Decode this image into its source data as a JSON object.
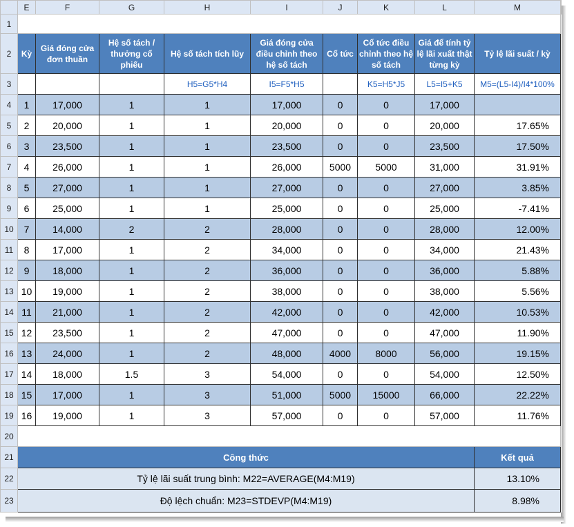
{
  "columns": [
    "E",
    "F",
    "G",
    "H",
    "I",
    "J",
    "K",
    "L",
    "M"
  ],
  "row_numbers": [
    "1",
    "2",
    "3",
    "4",
    "5",
    "6",
    "7",
    "8",
    "9",
    "10",
    "11",
    "12",
    "13",
    "14",
    "15",
    "16",
    "17",
    "18",
    "19",
    "20",
    "21",
    "22",
    "23"
  ],
  "headers": [
    "Kỳ",
    "Giá đóng cửa đơn thuần",
    "Hệ số tách / thưởng cổ phiếu",
    "Hệ số tách tích lũy",
    "Giá đóng cửa điều chỉnh theo hệ số tách",
    "Cổ tức",
    "Cổ tức điều chỉnh theo hệ số tách",
    "Giá để tính tỷ lệ lãi xuất thật từng kỳ",
    "Tỷ lệ lãi suất / kỳ"
  ],
  "formulas": [
    "",
    "",
    "",
    "H5=G5*H4",
    "I5=F5*H5",
    "",
    "K5=H5*J5",
    "L5=I5+K5",
    "M5=(L5-I4)/I4*100%"
  ],
  "rows": [
    [
      "1",
      "17,000",
      "1",
      "1",
      "17,000",
      "0",
      "0",
      "17,000",
      ""
    ],
    [
      "2",
      "20,000",
      "1",
      "1",
      "20,000",
      "0",
      "0",
      "20,000",
      "17.65%"
    ],
    [
      "3",
      "23,500",
      "1",
      "1",
      "23,500",
      "0",
      "0",
      "23,500",
      "17.50%"
    ],
    [
      "4",
      "26,000",
      "1",
      "1",
      "26,000",
      "5000",
      "5000",
      "31,000",
      "31.91%"
    ],
    [
      "5",
      "27,000",
      "1",
      "1",
      "27,000",
      "0",
      "0",
      "27,000",
      "3.85%"
    ],
    [
      "6",
      "25,000",
      "1",
      "1",
      "25,000",
      "0",
      "0",
      "25,000",
      "-7.41%"
    ],
    [
      "7",
      "14,000",
      "2",
      "2",
      "28,000",
      "0",
      "0",
      "28,000",
      "12.00%"
    ],
    [
      "8",
      "17,000",
      "1",
      "2",
      "34,000",
      "0",
      "0",
      "34,000",
      "21.43%"
    ],
    [
      "9",
      "18,000",
      "1",
      "2",
      "36,000",
      "0",
      "0",
      "36,000",
      "5.88%"
    ],
    [
      "10",
      "19,000",
      "1",
      "2",
      "38,000",
      "0",
      "0",
      "38,000",
      "5.56%"
    ],
    [
      "11",
      "21,000",
      "1",
      "2",
      "42,000",
      "0",
      "0",
      "42,000",
      "10.53%"
    ],
    [
      "12",
      "23,500",
      "1",
      "2",
      "47,000",
      "0",
      "0",
      "47,000",
      "11.90%"
    ],
    [
      "13",
      "24,000",
      "1",
      "2",
      "48,000",
      "4000",
      "8000",
      "56,000",
      "19.15%"
    ],
    [
      "14",
      "18,000",
      "1.5",
      "3",
      "54,000",
      "0",
      "0",
      "54,000",
      "12.50%"
    ],
    [
      "15",
      "17,000",
      "1",
      "3",
      "51,000",
      "5000",
      "15000",
      "66,000",
      "22.22%"
    ],
    [
      "16",
      "19,000",
      "1",
      "3",
      "57,000",
      "0",
      "0",
      "57,000",
      "11.76%"
    ]
  ],
  "summary": {
    "formula_header": "Công thức",
    "result_header": "Kết quả",
    "mean_label": "Tỷ lệ lãi suất trung bình: M22=AVERAGE(M4:M19)",
    "mean_value": "13.10%",
    "std_label": "Độ lệch chuẩn: M23=STDEVP(M4:M19)",
    "std_value": "8.98%"
  },
  "colors": {
    "header_fill": "#4f81bd",
    "band_fill": "#b8cce4",
    "summary_fill": "#dbe5f1",
    "formula_text": "#1f5fbf",
    "sheet_header_fill": "#dce6f4"
  }
}
